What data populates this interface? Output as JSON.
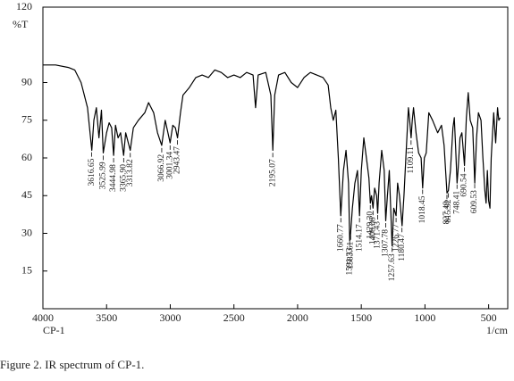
{
  "chart_data": {
    "type": "line",
    "y_label": "%T",
    "x_label_left": "CP-1",
    "x_label": "1/cm",
    "caption": "Figure 2. IR spectrum of CP-1.",
    "color": "#000000",
    "xlim": [
      4000,
      350
    ],
    "xticks": [
      4000,
      3500,
      3000,
      2500,
      2000,
      1500,
      1000,
      500
    ],
    "ylim": [
      0,
      120
    ],
    "yticks": [
      15,
      30,
      45,
      60,
      75,
      90,
      120
    ],
    "x": [
      4000,
      3900,
      3800,
      3750,
      3700,
      3650,
      3616,
      3600,
      3580,
      3560,
      3540,
      3526,
      3500,
      3480,
      3460,
      3445,
      3430,
      3410,
      3390,
      3366,
      3350,
      3314,
      3290,
      3250,
      3200,
      3170,
      3130,
      3100,
      3067,
      3040,
      3001,
      2980,
      2960,
      2943,
      2920,
      2900,
      2850,
      2800,
      2750,
      2700,
      2650,
      2600,
      2550,
      2500,
      2450,
      2400,
      2350,
      2330,
      2310,
      2250,
      2210,
      2195,
      2180,
      2150,
      2100,
      2050,
      2000,
      1950,
      1900,
      1850,
      1800,
      1760,
      1740,
      1720,
      1700,
      1680,
      1661,
      1640,
      1620,
      1600,
      1591,
      1584,
      1570,
      1550,
      1530,
      1514,
      1500,
      1480,
      1460,
      1440,
      1429,
      1420,
      1408,
      1395,
      1380,
      1371,
      1360,
      1340,
      1320,
      1308,
      1295,
      1280,
      1258,
      1245,
      1227,
      1215,
      1200,
      1180,
      1165,
      1150,
      1130,
      1120,
      1109,
      1100,
      1090,
      1070,
      1050,
      1030,
      1018,
      1005,
      990,
      970,
      940,
      900,
      870,
      850,
      827,
      816,
      800,
      780,
      770,
      760,
      748,
      740,
      725,
      710,
      690,
      675,
      660,
      645,
      625,
      609,
      595,
      580,
      560,
      545,
      530,
      520,
      510,
      500,
      490,
      480,
      460,
      445,
      430,
      420,
      410
    ],
    "values": [
      97,
      97,
      96,
      95,
      90,
      80,
      63,
      75,
      80,
      68,
      79,
      62,
      70,
      74,
      72,
      61,
      73,
      68,
      70,
      61,
      70,
      63,
      72,
      75,
      78,
      82,
      78,
      70,
      65,
      75,
      66,
      73,
      72,
      68,
      78,
      85,
      88,
      92,
      93,
      92,
      95,
      94,
      92,
      93,
      92,
      94,
      93,
      80,
      93,
      94,
      85,
      63,
      85,
      93,
      94,
      90,
      88,
      92,
      94,
      93,
      92,
      89,
      80,
      75,
      79,
      60,
      37,
      55,
      63,
      50,
      27,
      30,
      40,
      50,
      55,
      37,
      55,
      68,
      60,
      52,
      42,
      45,
      40,
      48,
      45,
      38,
      50,
      63,
      55,
      35,
      45,
      55,
      25,
      40,
      37,
      50,
      45,
      33,
      45,
      60,
      80,
      75,
      68,
      75,
      80,
      70,
      62,
      60,
      48,
      60,
      62,
      78,
      75,
      70,
      73,
      65,
      46,
      47,
      55,
      72,
      76,
      65,
      50,
      55,
      68,
      70,
      57,
      76,
      86,
      75,
      72,
      50,
      68,
      78,
      75,
      60,
      47,
      42,
      55,
      43,
      40,
      60,
      78,
      66,
      80,
      75,
      76
    ],
    "peaks": [
      {
        "x": 3616.65,
        "label": "3616.65"
      },
      {
        "x": 3525.99,
        "label": "3525.99"
      },
      {
        "x": 3444.98,
        "label": "3444.98"
      },
      {
        "x": 3365.9,
        "label": "3365.90"
      },
      {
        "x": 3313.82,
        "label": "3313.82"
      },
      {
        "x": 3066.92,
        "label": "3066.92"
      },
      {
        "x": 3001.34,
        "label": "3001.34"
      },
      {
        "x": 2943.47,
        "label": "2943.47"
      },
      {
        "x": 2195.07,
        "label": "2195.07"
      },
      {
        "x": 1660.77,
        "label": "1660.77"
      },
      {
        "x": 1591.33,
        "label": "1591.33"
      },
      {
        "x": 1583.61,
        "label": "1583.61"
      },
      {
        "x": 1514.17,
        "label": "1514.17"
      },
      {
        "x": 1429.3,
        "label": "1429.30"
      },
      {
        "x": 1408.08,
        "label": "1408.08"
      },
      {
        "x": 1371.43,
        "label": "1371.43"
      },
      {
        "x": 1307.78,
        "label": "1307.78"
      },
      {
        "x": 1257.63,
        "label": "1257.63"
      },
      {
        "x": 1226.77,
        "label": "1226.77"
      },
      {
        "x": 1180.47,
        "label": "1180.47"
      },
      {
        "x": 1109.11,
        "label": "1109.11"
      },
      {
        "x": 1018.45,
        "label": "1018.45"
      },
      {
        "x": 827.49,
        "label": "827.49"
      },
      {
        "x": 815.92,
        "label": "815.92"
      },
      {
        "x": 748.41,
        "label": "748.41"
      },
      {
        "x": 690.54,
        "label": "690.54"
      },
      {
        "x": 609.53,
        "label": "609.53"
      }
    ]
  }
}
